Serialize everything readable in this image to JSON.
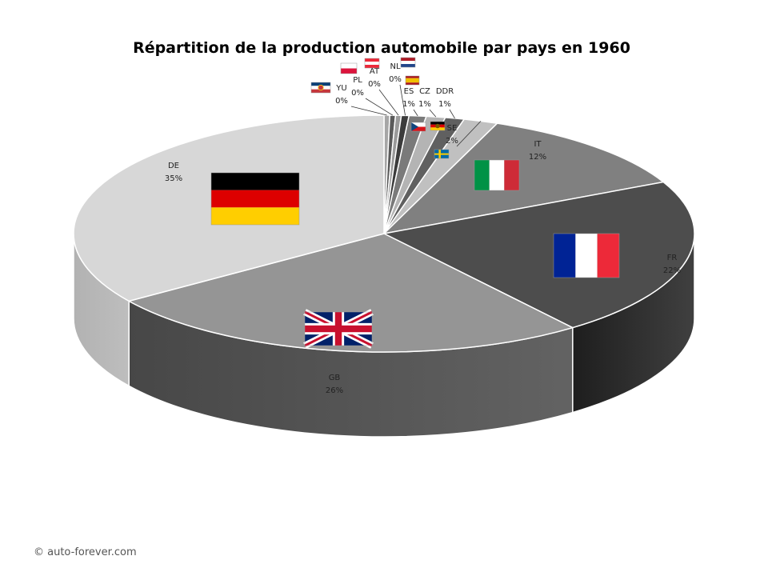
{
  "chart_data": {
    "type": "pie",
    "title": "Répartition de la production automobile par pays en 1960",
    "slices": [
      {
        "label": "YU",
        "value": 0.3,
        "pct": "0%",
        "color": "#a6a6a6",
        "side": "#8a8a8a",
        "flag": "yu"
      },
      {
        "label": "PL",
        "value": 0.3,
        "pct": "0%",
        "color": "#5a5a5a",
        "side": "#444444",
        "flag": "pl"
      },
      {
        "label": "AT",
        "value": 0.3,
        "pct": "0%",
        "color": "#9a9a9a",
        "side": "#7a7a7a",
        "flag": "at"
      },
      {
        "label": "NL",
        "value": 0.4,
        "pct": "0%",
        "color": "#3c3c3c",
        "side": "#2a2a2a",
        "flag": "nl"
      },
      {
        "label": "ES",
        "value": 0.9,
        "pct": "1%",
        "color": "#7a7a7a",
        "side": "#5c5c5c",
        "flag": "es"
      },
      {
        "label": "CZ",
        "value": 1.0,
        "pct": "1%",
        "color": "#b4b4b4",
        "side": "#969696",
        "flag": "cz"
      },
      {
        "label": "DDR",
        "value": 1.0,
        "pct": "1%",
        "color": "#606060",
        "side": "#484848",
        "flag": "ddr"
      },
      {
        "label": "SE",
        "value": 1.8,
        "pct": "2%",
        "color": "#c0c0c0",
        "side": "#9c9c9c",
        "flag": "se"
      },
      {
        "label": "IT",
        "value": 12,
        "pct": "12%",
        "color": "#808080",
        "side": "#626262",
        "flag": "it"
      },
      {
        "label": "FR",
        "value": 22,
        "pct": "22%",
        "color": "#4d4d4d",
        "side": "#1e1e1e",
        "flag": "fr"
      },
      {
        "label": "GB",
        "value": 26,
        "pct": "26%",
        "color": "#959595",
        "side": "#474747",
        "flag": "gb"
      },
      {
        "label": "DE",
        "value": 35,
        "pct": "35%",
        "color": "#d7d7d7",
        "side": "#b2b2b2",
        "flag": "de"
      }
    ]
  },
  "copyright": "© auto-forever.com"
}
